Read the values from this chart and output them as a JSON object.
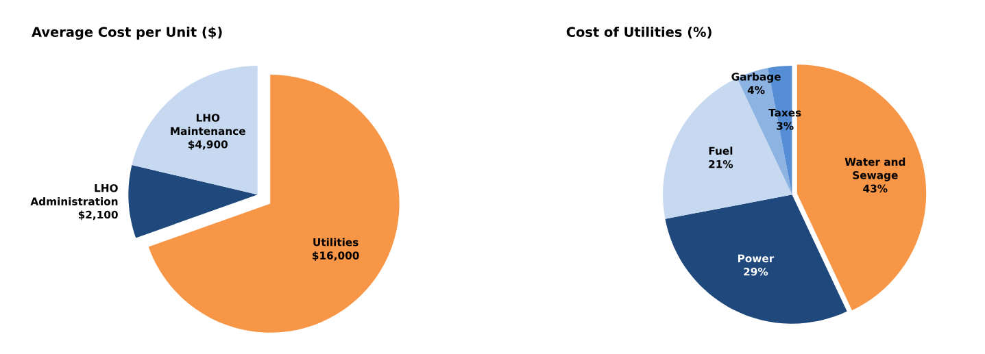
{
  "chart_data": [
    {
      "type": "pie",
      "title": "Average Cost per Unit ($)",
      "categories": [
        "Utilities",
        "LHO Administration",
        "LHO Maintenance"
      ],
      "values": [
        16000,
        2100,
        4900
      ],
      "colors": [
        "#f79646",
        "#1f497d",
        "#c6d9f0"
      ],
      "value_labels": [
        "$16,000",
        "$2,100",
        "$4,900"
      ]
    },
    {
      "type": "pie",
      "title": "Cost of Utilities (%)",
      "categories": [
        "Water and Sewage",
        "Power",
        "Fuel",
        "Garbage",
        "Taxes"
      ],
      "values": [
        43,
        29,
        21,
        4,
        3
      ],
      "colors": [
        "#f79646",
        "#1f497d",
        "#c6d9f0",
        "#8db3e2",
        "#558ed5"
      ],
      "value_labels": [
        "43%",
        "29%",
        "21%",
        "4%",
        "3%"
      ]
    }
  ]
}
